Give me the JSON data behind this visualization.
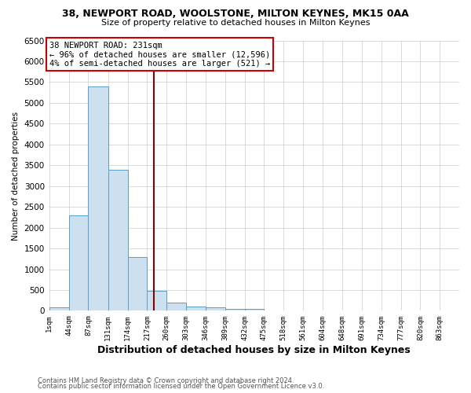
{
  "title1": "38, NEWPORT ROAD, WOOLSTONE, MILTON KEYNES, MK15 0AA",
  "title2": "Size of property relative to detached houses in Milton Keynes",
  "xlabel": "Distribution of detached houses by size in Milton Keynes",
  "ylabel": "Number of detached properties",
  "bin_edges": [
    1,
    44,
    87,
    131,
    174,
    217,
    260,
    303,
    346,
    389,
    432,
    475,
    518,
    561,
    604,
    648,
    691,
    734,
    777,
    820,
    863
  ],
  "bar_heights": [
    75,
    2300,
    5400,
    3400,
    1300,
    475,
    200,
    100,
    75,
    50,
    50,
    0,
    0,
    0,
    0,
    0,
    0,
    0,
    0,
    0
  ],
  "bar_color": "#cce0f0",
  "bar_edge_color": "#5a9ec9",
  "property_size": 231,
  "vline_color": "#8b0000",
  "annotation_text": "38 NEWPORT ROAD: 231sqm\n← 96% of detached houses are smaller (12,596)\n4% of semi-detached houses are larger (521) →",
  "annotation_box_color": "#ffffff",
  "annotation_box_edge_color": "#cc0000",
  "ylim": [
    0,
    6500
  ],
  "yticks": [
    0,
    500,
    1000,
    1500,
    2000,
    2500,
    3000,
    3500,
    4000,
    4500,
    5000,
    5500,
    6000,
    6500
  ],
  "footnote1": "Contains HM Land Registry data © Crown copyright and database right 2024.",
  "footnote2": "Contains public sector information licensed under the Open Government Licence v3.0.",
  "background_color": "#ffffff",
  "grid_color": "#cccccc"
}
